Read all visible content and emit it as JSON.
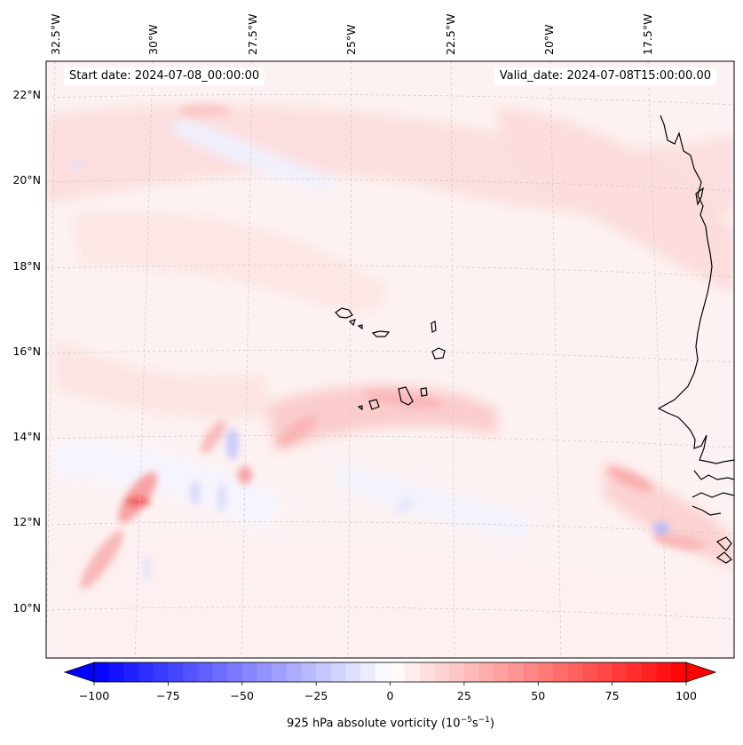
{
  "header": {
    "start_date": "Start date: 2024-07-08_00:00:00",
    "valid_date": "Valid_date: 2024-07-08T15:00:00.00"
  },
  "map": {
    "lon_labels": [
      "32.5°W",
      "30°W",
      "27.5°W",
      "25°W",
      "22.5°W",
      "20°W",
      "17.5°W"
    ],
    "lat_labels": [
      "22°N",
      "20°N",
      "18°N",
      "16°N",
      "14°N",
      "12°N",
      "10°N"
    ],
    "coastline_color": "#000000",
    "gridline_color": "#c8c8c8"
  },
  "colorbar": {
    "ticks": [
      "−100",
      "−75",
      "−50",
      "−25",
      "0",
      "25",
      "50",
      "75",
      "100"
    ],
    "label_prefix": "925 hPa absolute vorticity (10",
    "label_exp1": "−5",
    "label_mid": "s",
    "label_exp2": "−1",
    "label_suffix": ")",
    "min_color": "#0000ff",
    "mid_color": "#ffffff",
    "max_color": "#ff0000"
  }
}
